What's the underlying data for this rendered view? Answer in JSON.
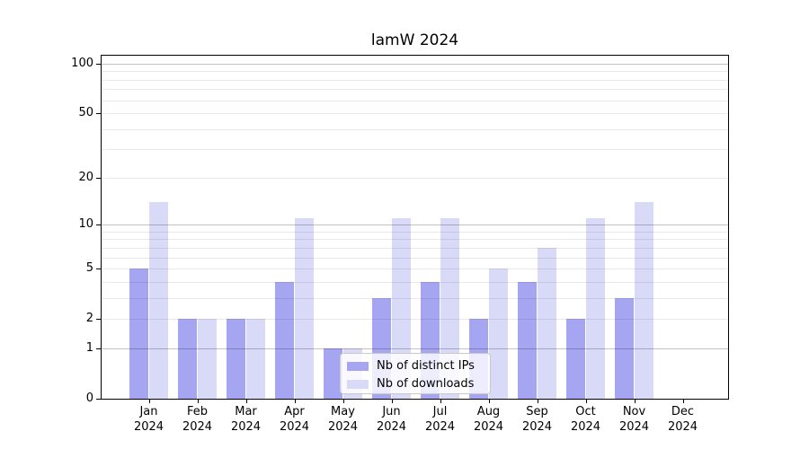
{
  "title": "lamW 2024",
  "chart_data": {
    "type": "bar",
    "title": "lamW 2024",
    "x_categories": [
      "Jan",
      "Feb",
      "Mar",
      "Apr",
      "May",
      "Jun",
      "Jul",
      "Aug",
      "Sep",
      "Oct",
      "Nov",
      "Dec"
    ],
    "x_year_label": "2024",
    "series": [
      {
        "name": "Nb of distinct IPs",
        "color": "#a5a5f2",
        "values": [
          5,
          2,
          2,
          4,
          1,
          3,
          4,
          2,
          4,
          2,
          3,
          0
        ]
      },
      {
        "name": "Nb of downloads",
        "color": "#d9d9f8",
        "values": [
          14,
          2,
          2,
          11,
          1,
          11,
          11,
          5,
          7,
          11,
          14,
          0
        ]
      }
    ],
    "y_axis": {
      "scale": "log1p",
      "tick_values": [
        0,
        1,
        2,
        5,
        10,
        20,
        50,
        100
      ],
      "major_gridlines": [
        1,
        10,
        100
      ],
      "minor_gridlines": [
        2,
        3,
        4,
        5,
        6,
        7,
        8,
        9,
        20,
        30,
        40,
        50,
        60,
        70,
        80,
        90
      ],
      "range": [
        0,
        110
      ]
    },
    "legend": {
      "position": "lower center",
      "items": [
        "Nb of distinct IPs",
        "Nb of downloads"
      ]
    },
    "grid": true
  }
}
